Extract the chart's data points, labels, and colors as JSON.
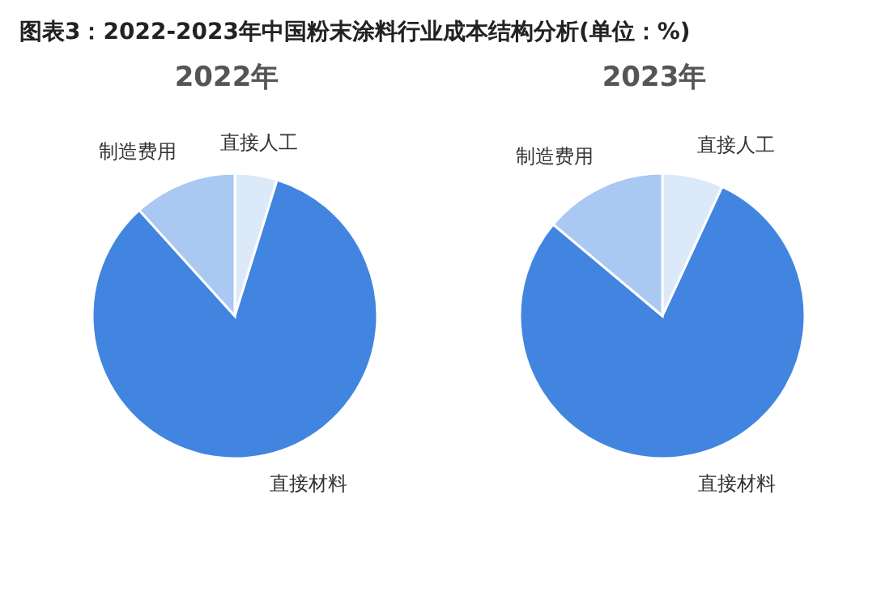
{
  "chart_data": [
    {
      "type": "pie",
      "title": "图表3：2022-2023年中国粉末涂料行业成本结构分析(单位：%)",
      "subtitle": "2022年",
      "categories": [
        "直接人工",
        "直接材料",
        "制造费用"
      ],
      "values": [
        4.8,
        83.5,
        11.7
      ],
      "colors": [
        "#dce9f9",
        "#4285e0",
        "#a9c8f2"
      ]
    },
    {
      "type": "pie",
      "subtitle": "2023年",
      "categories": [
        "直接人工",
        "直接材料",
        "制造费用"
      ],
      "values": [
        6.9,
        79.2,
        13.9
      ],
      "colors": [
        "#dce9f9",
        "#4285e0",
        "#a9c8f2"
      ]
    }
  ]
}
